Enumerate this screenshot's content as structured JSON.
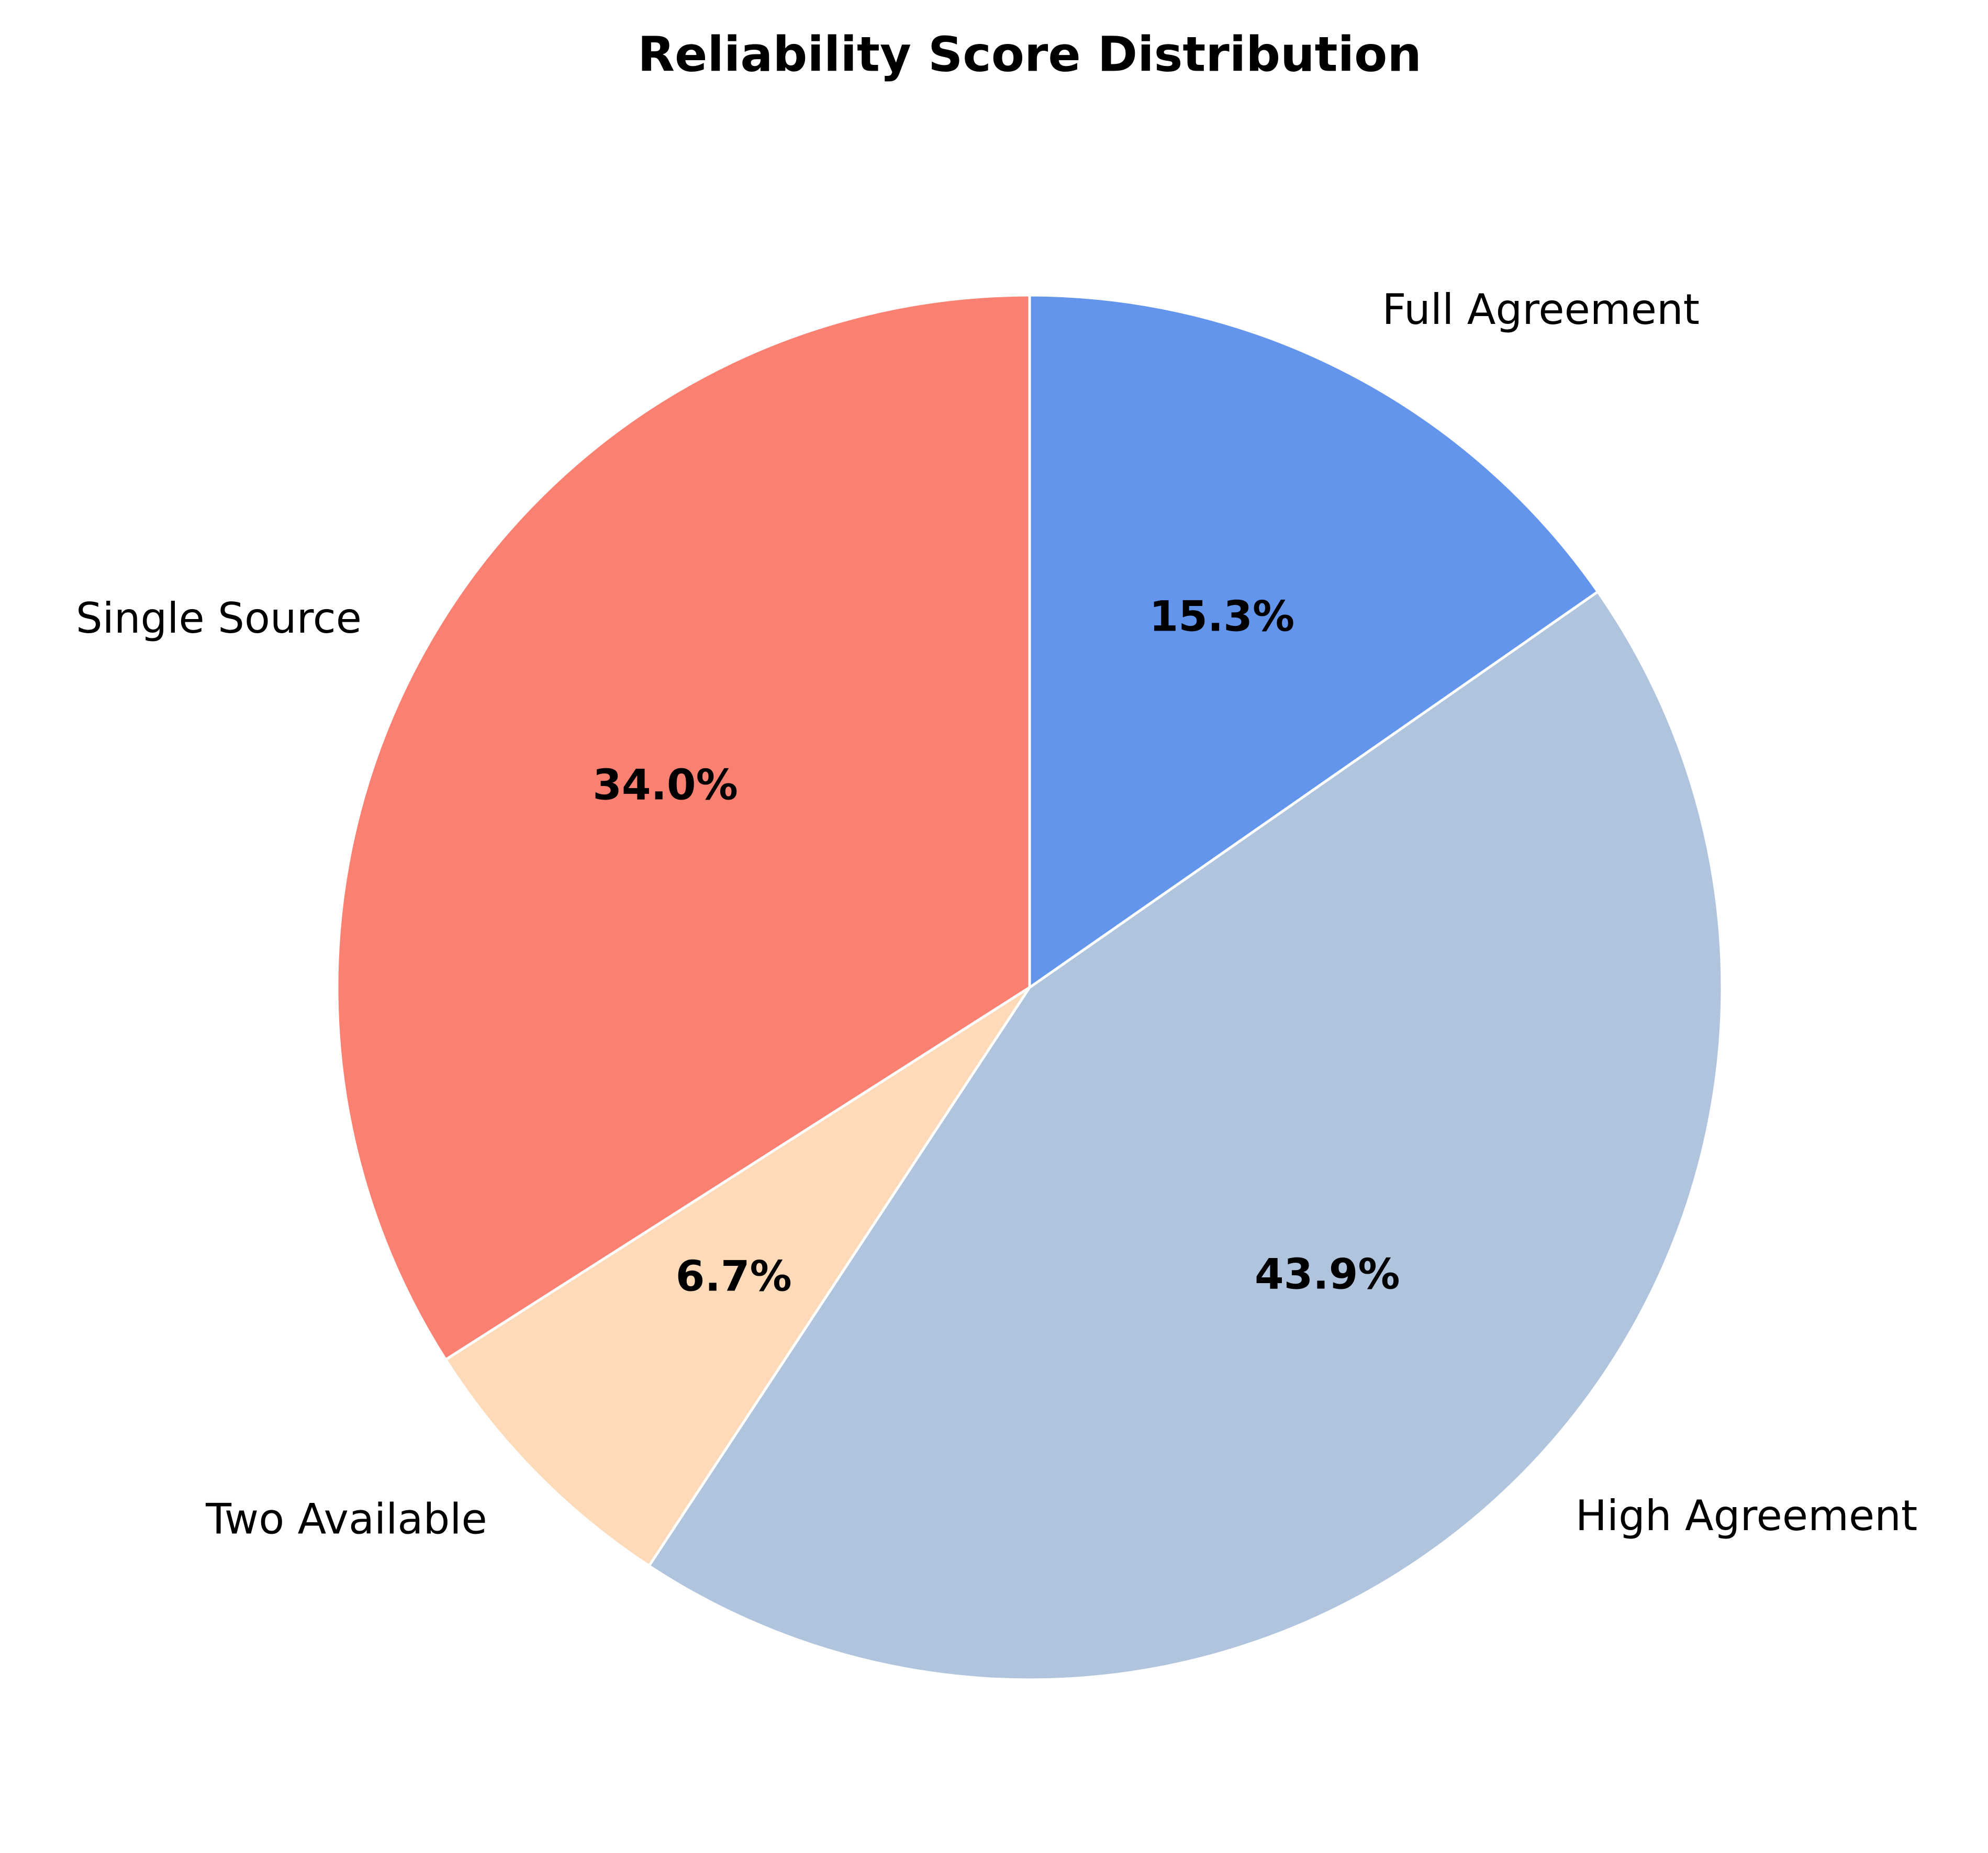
{
  "chart_data": {
    "type": "pie",
    "title": "Reliability Score Distribution",
    "categories": [
      "Single Source",
      "Two Available",
      "High Agreement",
      "Full Agreement"
    ],
    "values": [
      34.0,
      6.7,
      43.9,
      15.3
    ],
    "value_labels": [
      "34.0%",
      "6.7%",
      "43.9%",
      "15.3%"
    ],
    "colors": [
      "#fa8072",
      "#ffdab9",
      "#b0c4de",
      "#6495ed"
    ]
  }
}
